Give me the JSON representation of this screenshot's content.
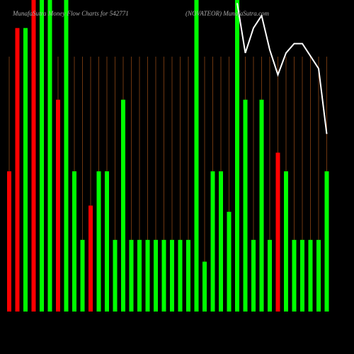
{
  "chart_data": {
    "type": "bar",
    "title": "MunafaSutra Money Flow Charts for 542771",
    "subtitle": "(NOVATEOR) MunafaSutra.com",
    "categories": [
      null,
      null,
      null,
      null,
      null,
      null,
      null,
      null,
      null,
      null,
      null,
      null,
      null,
      null,
      null,
      null,
      null,
      null,
      null,
      null,
      null,
      null,
      null,
      null,
      null,
      null,
      null,
      null,
      null,
      null,
      null,
      null,
      null,
      null,
      null,
      null,
      null,
      null,
      null,
      null
    ],
    "values": [
      45,
      91,
      91,
      100,
      100,
      100,
      68,
      100,
      45,
      23,
      34,
      45,
      45,
      23,
      68,
      23,
      23,
      23,
      23,
      23,
      23,
      23,
      23,
      100,
      16,
      45,
      45,
      32,
      100,
      68,
      23,
      68,
      23,
      51,
      45,
      23,
      23,
      23,
      23,
      45
    ],
    "colors": [
      "#ff0000",
      "#ff0000",
      "#00ff00",
      "#ff0000",
      "#00ff00",
      "#00ff00",
      "#ff0000",
      "#00ff00",
      "#00ff00",
      "#00ff00",
      "#ff0000",
      "#00ff00",
      "#00ff00",
      "#00ff00",
      "#00ff00",
      "#00ff00",
      "#00ff00",
      "#00ff00",
      "#00ff00",
      "#00ff00",
      "#00ff00",
      "#00ff00",
      "#00ff00",
      "#00ff00",
      "#00ff00",
      "#00ff00",
      "#00ff00",
      "#00ff00",
      "#00ff00",
      "#00ff00",
      "#00ff00",
      "#00ff00",
      "#00ff00",
      "#ff0000",
      "#00ff00",
      "#00ff00",
      "#00ff00",
      "#00ff00",
      "#00ff00",
      "#00ff00"
    ],
    "line": {
      "color": "#ffffff",
      "values": [
        null,
        null,
        null,
        null,
        null,
        null,
        null,
        null,
        null,
        null,
        null,
        null,
        null,
        null,
        null,
        null,
        null,
        null,
        null,
        null,
        null,
        null,
        null,
        null,
        null,
        null,
        null,
        null,
        99,
        83,
        91,
        95,
        84,
        76,
        83,
        86,
        86,
        82,
        78,
        57
      ]
    },
    "ylim": [
      0,
      100
    ]
  }
}
